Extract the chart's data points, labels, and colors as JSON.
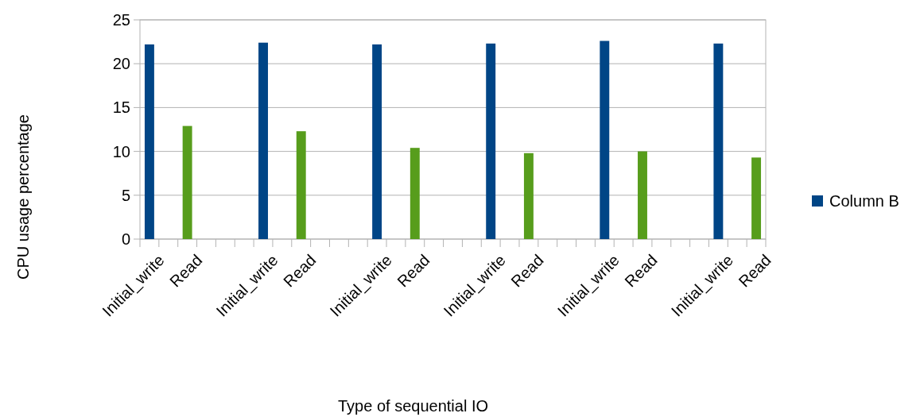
{
  "chart_data": {
    "type": "bar",
    "xlabel": "Type of sequential IO",
    "ylabel": "CPU usage percentage",
    "categories": [
      "Initial_write",
      null,
      "Read",
      null,
      null,
      null,
      "Initial_write",
      null,
      "Read",
      null,
      null,
      null,
      "Initial_write",
      null,
      "Read",
      null,
      null,
      null,
      "Initial_write",
      null,
      "Read",
      null,
      null,
      null,
      "Initial_write",
      null,
      "Read",
      null,
      null,
      null,
      "Initial_write",
      null,
      "Read"
    ],
    "series": [
      {
        "name": "Column B",
        "color": "#004586",
        "values": [
          22.2,
          null,
          12.9,
          null,
          null,
          null,
          22.4,
          null,
          12.3,
          null,
          null,
          null,
          22.2,
          null,
          10.4,
          null,
          null,
          null,
          22.3,
          null,
          9.8,
          null,
          null,
          null,
          22.6,
          null,
          10.0,
          null,
          null,
          null,
          22.3,
          null,
          9.3
        ],
        "colors": [
          "#004586",
          null,
          "#579d1c",
          null,
          null,
          null,
          "#004586",
          null,
          "#579d1c",
          null,
          null,
          null,
          "#004586",
          null,
          "#579d1c",
          null,
          null,
          null,
          "#004586",
          null,
          "#579d1c",
          null,
          null,
          null,
          "#004586",
          null,
          "#579d1c",
          null,
          null,
          null,
          "#004586",
          null,
          "#579d1c"
        ]
      }
    ],
    "ylim": [
      0,
      25
    ],
    "yticks": [
      0,
      5,
      10,
      15,
      20,
      25
    ],
    "grid": "y",
    "legend": "right"
  }
}
